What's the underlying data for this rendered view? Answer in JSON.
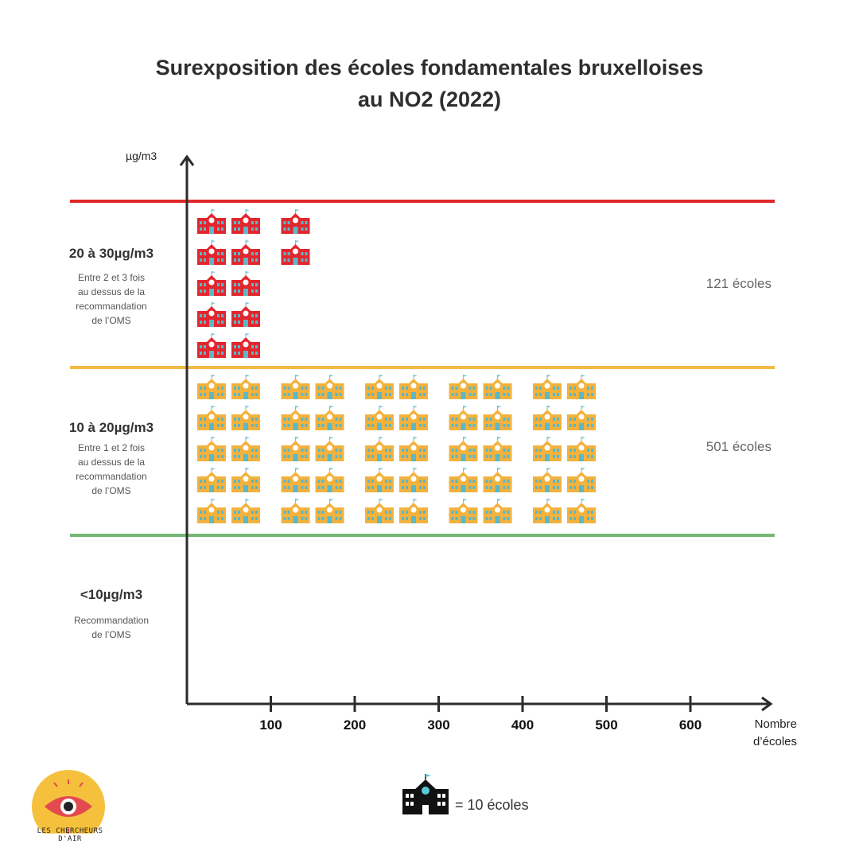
{
  "title_line1": "Surexposition des écoles fondamentales bruxelloises",
  "title_line2": "au NO2 (2022)",
  "chart_data": {
    "type": "pictogram",
    "title": "Surexposition des écoles fondamentales bruxelloises au NO2 (2022)",
    "ylabel": "µg/m3",
    "xlabel": "Nombre d’écoles",
    "xlim": [
      0,
      700
    ],
    "xticks": [
      100,
      200,
      300,
      400,
      500,
      600
    ],
    "unit_per_icon": 10,
    "bands": [
      {
        "name": "20 à 30µg/m3",
        "description_lines": [
          "Entre 2 et 3 fois",
          "au dessus de la",
          "recommandation",
          "de l’OMS"
        ],
        "schools": 121,
        "count_label": "121 écoles",
        "color": "#e02828",
        "icon_color": "#e3262e"
      },
      {
        "name": "10 à 20µg/m3",
        "description_lines": [
          "Entre 1 et 2 fois",
          "au dessus de la",
          "recommandation",
          "de l’OMS"
        ],
        "schools": 501,
        "count_label": "501 écoles",
        "color": "#f2bb45",
        "icon_color": "#f3b23d"
      },
      {
        "name": "<10µg/m3",
        "description_lines": [
          "Recommandation",
          "de l’OMS"
        ],
        "schools": 0,
        "count_label": "",
        "color": "#72b874",
        "icon_color": "#72b874"
      }
    ]
  },
  "legend": {
    "icon": "school-building-icon",
    "text": "= 10 écoles",
    "color": "#111111"
  },
  "logo": {
    "icon": "eye-icon",
    "text": "LES CHERCHEURS D'AIR",
    "bg_color": "#f5c13c",
    "eye_color": "#e24a4f"
  }
}
